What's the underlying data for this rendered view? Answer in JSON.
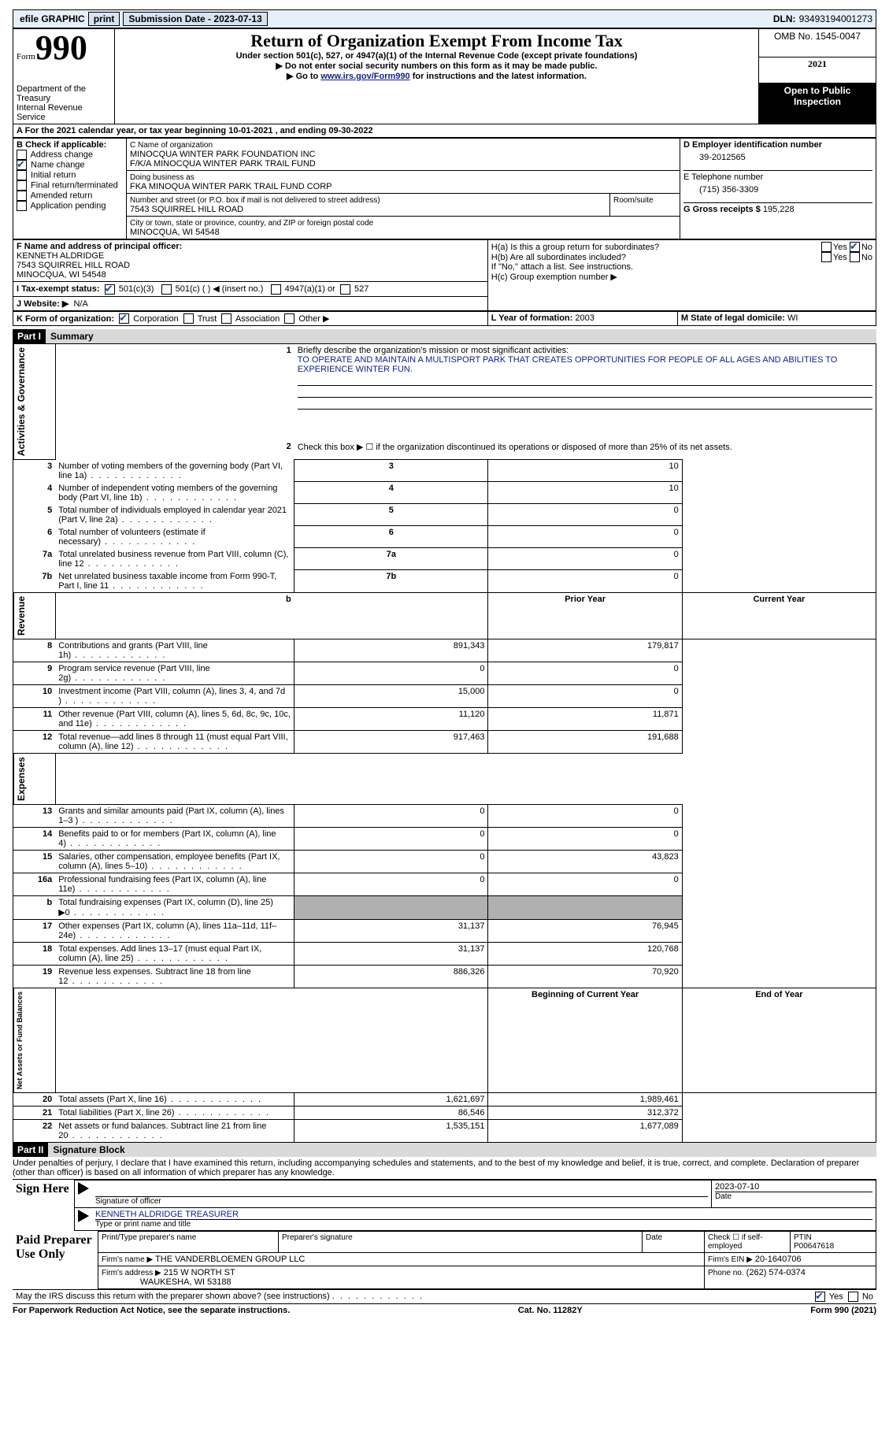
{
  "topbar": {
    "efile": "efile GRAPHIC",
    "print": "print",
    "submission_label": "Submission Date -",
    "submission_date": "2023-07-13",
    "dln_label": "DLN:",
    "dln": "93493194001273"
  },
  "header": {
    "form_word": "Form",
    "form_number": "990",
    "dept": "Department of the Treasury",
    "irs": "Internal Revenue Service",
    "title": "Return of Organization Exempt From Income Tax",
    "subtitle": "Under section 501(c), 527, or 4947(a)(1) of the Internal Revenue Code (except private foundations)",
    "warn1": "▶ Do not enter social security numbers on this form as it may be made public.",
    "warn2_pre": "▶ Go to ",
    "warn2_link": "www.irs.gov/Form990",
    "warn2_post": " for instructions and the latest information.",
    "omb": "OMB No. 1545-0047",
    "year": "2021",
    "open_public": "Open to Public Inspection"
  },
  "period": {
    "line": "A For the 2021 calendar year, or tax year beginning ",
    "begin": "10-01-2021",
    "mid": "     , and ending ",
    "end": "09-30-2022"
  },
  "boxB": {
    "label": "B Check if applicable:",
    "items": [
      {
        "text": "Address change",
        "checked": false
      },
      {
        "text": "Name change",
        "checked": true
      },
      {
        "text": "Initial return",
        "checked": false
      },
      {
        "text": "Final return/terminated",
        "checked": false
      },
      {
        "text": "Amended return",
        "checked": false
      },
      {
        "text": "Application pending",
        "checked": false
      }
    ]
  },
  "boxC": {
    "name_label": "C Name of organization",
    "name_line1": "MINOCQUA WINTER PARK FOUNDATION INC",
    "name_line2": "F/K/A MINOCQUA WINTER PARK TRAIL FUND",
    "dba_label": "Doing business as",
    "dba": "FKA MINOQUA WINTER PARK TRAIL FUND CORP",
    "street_label": "Number and street (or P.O. box if mail is not delivered to street address)",
    "room_label": "Room/suite",
    "street": "7543 SQUIRREL HILL ROAD",
    "city_label": "City or town, state or province, country, and ZIP or foreign postal code",
    "city": "MINOCQUA, WI  54548"
  },
  "boxD": {
    "label": "D Employer identification number",
    "value": "39-2012565"
  },
  "boxE": {
    "label": "E Telephone number",
    "value": "(715) 356-3309"
  },
  "boxG": {
    "label": "G Gross receipts $",
    "value": "195,228"
  },
  "boxF": {
    "label": "F  Name and address of principal officer:",
    "name": "KENNETH ALDRIDGE",
    "street": "7543 SQUIRREL HILL ROAD",
    "city": "MINOCQUA, WI  54548"
  },
  "boxH": {
    "ha": "H(a)   Is this a group return for subordinates?",
    "hb": "H(b)   Are all subordinates included?",
    "hb_note": "If \"No,\" attach a list. See instructions.",
    "hc": "H(c)   Group exemption number ▶",
    "yes": "Yes",
    "no": "No"
  },
  "boxI": {
    "label": "I    Tax-exempt status:",
    "c3": "501(c)(3)",
    "c": "501(c) (  ) ◀ (insert no.)",
    "a1": "4947(a)(1) or",
    "s527": "527"
  },
  "boxJ": {
    "label": "J    Website: ▶",
    "value": "N/A"
  },
  "boxK": {
    "label": "K Form of organization:",
    "corp": "Corporation",
    "trust": "Trust",
    "assoc": "Association",
    "other": "Other ▶"
  },
  "boxL": {
    "label": "L Year of formation:",
    "value": "2003"
  },
  "boxM": {
    "label": "M State of legal domicile:",
    "value": "WI"
  },
  "part1": {
    "hdr": "Part I",
    "title": "Summary",
    "line1_label": "Briefly describe the organization's mission or most significant activities:",
    "line1_text": "TO OPERATE AND MAINTAIN A MULTISPORT PARK THAT CREATES OPPORTUNITIES FOR PEOPLE OF ALL AGES AND ABILITIES TO EXPERIENCE WINTER FUN.",
    "line2": "Check this box ▶ ☐  if the organization discontinued its operations or disposed of more than 25% of its net assets.",
    "vtext_act": "Activities & Governance",
    "vtext_rev": "Revenue",
    "vtext_exp": "Expenses",
    "vtext_net": "Net Assets or Fund Balances",
    "rows_top": [
      {
        "n": "3",
        "desc": "Number of voting members of the governing body (Part VI, line 1a)",
        "val": "10"
      },
      {
        "n": "4",
        "desc": "Number of independent voting members of the governing body (Part VI, line 1b)",
        "val": "10"
      },
      {
        "n": "5",
        "desc": "Total number of individuals employed in calendar year 2021 (Part V, line 2a)",
        "val": "0"
      },
      {
        "n": "6",
        "desc": "Total number of volunteers (estimate if necessary)",
        "val": "0"
      },
      {
        "n": "7a",
        "desc": "Total unrelated business revenue from Part VIII, column (C), line 12",
        "val": "0"
      },
      {
        "n": "7b",
        "desc": "Net unrelated business taxable income from Form 990-T, Part I, line 11",
        "val": "0"
      }
    ],
    "col_prior": "Prior Year",
    "col_current": "Current Year",
    "col_boy": "Beginning of Current Year",
    "col_eoy": "End of Year",
    "rows_rev": [
      {
        "n": "8",
        "desc": "Contributions and grants (Part VIII, line 1h)",
        "p": "891,343",
        "c": "179,817"
      },
      {
        "n": "9",
        "desc": "Program service revenue (Part VIII, line 2g)",
        "p": "0",
        "c": "0"
      },
      {
        "n": "10",
        "desc": "Investment income (Part VIII, column (A), lines 3, 4, and 7d )",
        "p": "15,000",
        "c": "0"
      },
      {
        "n": "11",
        "desc": "Other revenue (Part VIII, column (A), lines 5, 6d, 8c, 9c, 10c, and 11e)",
        "p": "11,120",
        "c": "11,871"
      },
      {
        "n": "12",
        "desc": "Total revenue—add lines 8 through 11 (must equal Part VIII, column (A), line 12)",
        "p": "917,463",
        "c": "191,688"
      }
    ],
    "rows_exp": [
      {
        "n": "13",
        "desc": "Grants and similar amounts paid (Part IX, column (A), lines 1–3 )",
        "p": "0",
        "c": "0"
      },
      {
        "n": "14",
        "desc": "Benefits paid to or for members (Part IX, column (A), line 4)",
        "p": "0",
        "c": "0"
      },
      {
        "n": "15",
        "desc": "Salaries, other compensation, employee benefits (Part IX, column (A), lines 5–10)",
        "p": "0",
        "c": "43,823"
      },
      {
        "n": "16a",
        "desc": "Professional fundraising fees (Part IX, column (A), line 11e)",
        "p": "0",
        "c": "0"
      },
      {
        "n": "b",
        "desc": "Total fundraising expenses (Part IX, column (D), line 25) ▶0",
        "p": "__grey__",
        "c": "__grey__"
      },
      {
        "n": "17",
        "desc": "Other expenses (Part IX, column (A), lines 11a–11d, 11f–24e)",
        "p": "31,137",
        "c": "76,945"
      },
      {
        "n": "18",
        "desc": "Total expenses. Add lines 13–17 (must equal Part IX, column (A), line 25)",
        "p": "31,137",
        "c": "120,768"
      },
      {
        "n": "19",
        "desc": "Revenue less expenses. Subtract line 18 from line 12",
        "p": "886,326",
        "c": "70,920"
      }
    ],
    "rows_net": [
      {
        "n": "20",
        "desc": "Total assets (Part X, line 16)",
        "p": "1,621,697",
        "c": "1,989,461"
      },
      {
        "n": "21",
        "desc": "Total liabilities (Part X, line 26)",
        "p": "86,546",
        "c": "312,372"
      },
      {
        "n": "22",
        "desc": "Net assets or fund balances. Subtract line 21 from line 20",
        "p": "1,535,151",
        "c": "1,677,089"
      }
    ]
  },
  "part2": {
    "hdr": "Part II",
    "title": "Signature Block",
    "decl": "Under penalties of perjury, I declare that I have examined this return, including accompanying schedules and statements, and to the best of my knowledge and belief, it is true, correct, and complete. Declaration of preparer (other than officer) is based on all information of which preparer has any knowledge.",
    "sign_here": "Sign Here",
    "sig_officer": "Signature of officer",
    "sig_date": "2023-07-10",
    "date_label": "Date",
    "officer_name": "KENNETH ALDRIDGE  TREASURER",
    "type_name": "Type or print name and title",
    "paid": "Paid Preparer Use Only",
    "p_name_label": "Print/Type preparer's name",
    "p_sig_label": "Preparer's signature",
    "p_date_label": "Date",
    "p_check": "Check ☐ if self-employed",
    "ptin_label": "PTIN",
    "ptin": "P00647618",
    "firm_name_label": "Firm's name     ▶",
    "firm_name": "THE VANDERBLOEMEN GROUP LLC",
    "firm_ein_label": "Firm's EIN ▶",
    "firm_ein": "20-1640706",
    "firm_addr_label": "Firm's address ▶",
    "firm_addr1": "215 W NORTH ST",
    "firm_addr2": "WAUKESHA, WI  53188",
    "phone_label": "Phone no.",
    "phone": "(262) 574-0374",
    "discuss": "May the IRS discuss this return with the preparer shown above? (see instructions)"
  },
  "footer": {
    "left": "For Paperwork Reduction Act Notice, see the separate instructions.",
    "mid": "Cat. No. 11282Y",
    "right": "Form 990 (2021)"
  }
}
